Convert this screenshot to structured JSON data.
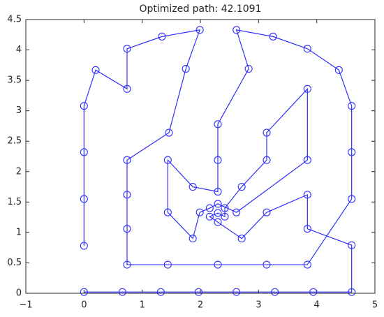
{
  "chart_data": {
    "type": "line",
    "title": "Optimized path:  42.1091",
    "x": [
      0,
      0,
      0,
      0,
      0.2,
      0.74,
      0.74,
      1.34,
      1.99,
      1.75,
      1.46,
      0.74,
      0.74,
      0.74,
      0.74,
      1.44,
      2.3,
      3.14,
      3.84,
      4.6,
      4.6,
      4.6,
      4.38,
      3.84,
      3.25,
      2.62,
      2.83,
      2.3,
      2.3,
      2.3,
      1.87,
      1.44,
      1.44,
      1.87,
      1.99,
      2.16,
      2.3,
      2.62,
      3.84,
      3.84,
      3.14,
      3.14,
      2.71,
      2.42,
      2.42,
      2.3,
      2.16,
      2.3,
      2.71,
      3.14,
      3.84,
      3.84,
      4.6,
      4.6,
      3.94,
      3.28,
      2.62,
      1.97,
      1.32,
      0.66,
      0
    ],
    "series": [
      {
        "color": "#2f2fff",
        "marker": "circle",
        "values": [
          0.78,
          1.55,
          2.32,
          3.08,
          3.67,
          3.36,
          4.02,
          4.22,
          4.33,
          3.69,
          2.64,
          2.19,
          1.62,
          1.06,
          0.47,
          0.47,
          0.47,
          0.47,
          0.47,
          1.55,
          2.32,
          3.08,
          3.67,
          4.02,
          4.22,
          4.33,
          3.69,
          2.78,
          2.19,
          1.67,
          1.75,
          2.19,
          1.33,
          0.9,
          1.33,
          1.4,
          1.47,
          1.33,
          2.19,
          3.36,
          2.64,
          2.19,
          1.75,
          1.4,
          1.26,
          1.32,
          1.26,
          1.17,
          0.9,
          1.33,
          1.62,
          1.06,
          0.79,
          0.02,
          0.02,
          0.02,
          0.02,
          0.02,
          0.02,
          0.02,
          0.02
        ]
      }
    ],
    "xlim": [
      -1,
      5
    ],
    "xticks": [
      {
        "value": -1,
        "label": "−1"
      },
      0,
      1,
      2,
      3,
      4,
      5
    ],
    "ylim": [
      0,
      4.5
    ],
    "yticks": [
      0,
      0.5,
      1,
      1.5,
      2,
      2.5,
      3,
      3.5,
      4,
      4.5
    ],
    "grid": false
  }
}
